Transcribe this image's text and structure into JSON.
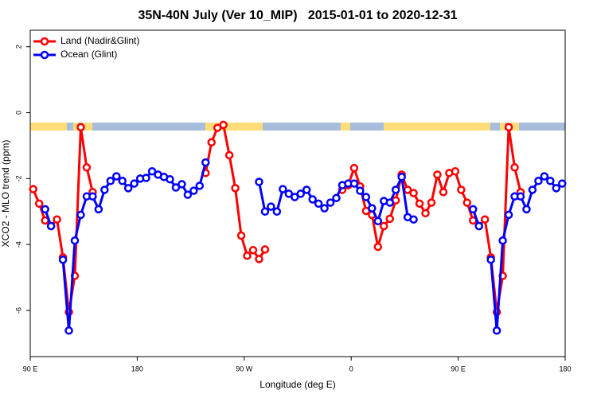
{
  "chart_data": {
    "type": "line",
    "title": "35N-40N July (Ver 10_MIP)   2015-01-01 to 2020-12-31",
    "x_label": "Longitude (deg E)",
    "y_label": "XCO2 - MLO trend (ppm)",
    "x": [
      92.5,
      97.5,
      102.5,
      107.5,
      112.5,
      117.5,
      122.5,
      127.5,
      132.5,
      137.5,
      142.5,
      147.5,
      152.5,
      157.5,
      162.5,
      167.5,
      172.5,
      177.5,
      182.5,
      187.5,
      192.5,
      197.5,
      202.5,
      207.5,
      212.5,
      217.5,
      222.5,
      227.5,
      232.5,
      237.5,
      242.5,
      247.5,
      252.5,
      257.5,
      262.5,
      267.5,
      272.5,
      277.5,
      282.5,
      287.5,
      292.5,
      297.5,
      302.5,
      307.5,
      312.5,
      317.5,
      322.5,
      327.5,
      332.5,
      337.5,
      342.5,
      347.5,
      352.5,
      357.5,
      362.5,
      367.5,
      372.5,
      377.5,
      382.5,
      387.5,
      392.5,
      397.5,
      402.5,
      407.5,
      412.5,
      417.5,
      422.5,
      427.5,
      432.5,
      437.5,
      442.5,
      447.5,
      452.5,
      457.5,
      462.5,
      467.5,
      472.5,
      477.5,
      482.5,
      487.5,
      492.5,
      497.5,
      502.5,
      507.5,
      512.5,
      517.5,
      522.5,
      527.5,
      532.5,
      537.5
    ],
    "series": [
      {
        "name": "Land (Nadir&Glint)",
        "color": "#ff0000",
        "values": [
          -2.32,
          -2.76,
          -3.27,
          -3.44,
          -3.24,
          -4.39,
          -6.05,
          -4.95,
          -0.44,
          -1.66,
          -2.41,
          null,
          null,
          null,
          null,
          null,
          null,
          null,
          null,
          null,
          null,
          null,
          null,
          null,
          null,
          null,
          null,
          null,
          null,
          -1.83,
          -0.9,
          -0.46,
          -0.37,
          -1.29,
          -2.29,
          -3.73,
          -4.34,
          -4.17,
          -4.44,
          -4.15,
          null,
          null,
          null,
          null,
          null,
          null,
          null,
          null,
          null,
          null,
          null,
          null,
          -2.34,
          -2.2,
          -1.68,
          -2.24,
          -2.98,
          -3.1,
          -4.07,
          -3.44,
          -3.22,
          -2.66,
          -1.88,
          -2.34,
          -2.44,
          -2.76,
          -3.05,
          -2.73,
          -1.88,
          -2.41,
          -1.83,
          -1.78,
          -2.34,
          -2.73,
          -3.27,
          -3.44,
          -3.24,
          -4.39,
          -6.05,
          -4.95,
          -0.44,
          -1.66,
          -2.41,
          null,
          null,
          null,
          null,
          null,
          null,
          null
        ]
      },
      {
        "name": "Ocean (Glint)",
        "color": "#0000ff",
        "values": [
          null,
          null,
          -2.93,
          -3.44,
          null,
          -4.46,
          -6.61,
          -3.88,
          -3.1,
          -2.54,
          -2.54,
          -2.93,
          -2.34,
          -2.07,
          -1.93,
          -2.07,
          -2.29,
          -2.15,
          -2.0,
          -1.98,
          -1.78,
          -1.88,
          -1.95,
          -2.02,
          -2.27,
          -2.17,
          -2.49,
          -2.37,
          -2.22,
          -1.51,
          null,
          null,
          null,
          null,
          null,
          null,
          null,
          null,
          -2.1,
          -3.0,
          -2.85,
          -3.0,
          -2.32,
          -2.46,
          -2.56,
          -2.46,
          -2.34,
          -2.63,
          -2.76,
          -2.9,
          -2.73,
          -2.59,
          -2.2,
          -2.15,
          -2.15,
          -2.37,
          -2.56,
          -2.9,
          -3.29,
          -2.68,
          -2.73,
          -2.34,
          -1.95,
          -3.17,
          -3.24,
          null,
          null,
          null,
          null,
          null,
          null,
          null,
          null,
          null,
          -2.93,
          -3.44,
          null,
          -4.46,
          -6.61,
          -3.88,
          -3.1,
          -2.54,
          -2.54,
          -2.93,
          -2.34,
          -2.07,
          -1.93,
          -2.07,
          -2.29,
          -2.15
        ]
      }
    ],
    "xlim": [
      90,
      540
    ],
    "ylim": [
      -7.4,
      2.5
    ],
    "xticks": [
      {
        "value": 90,
        "label": "90 E"
      },
      180,
      {
        "value": 270,
        "label": "90 W"
      },
      {
        "value": 360,
        "label": "0"
      },
      {
        "value": 450,
        "label": "90 E"
      },
      {
        "value": 540,
        "label": "180"
      }
    ],
    "yticks": [
      -6,
      -4,
      -2,
      0,
      2
    ],
    "grid": false,
    "legend": "top-left"
  }
}
